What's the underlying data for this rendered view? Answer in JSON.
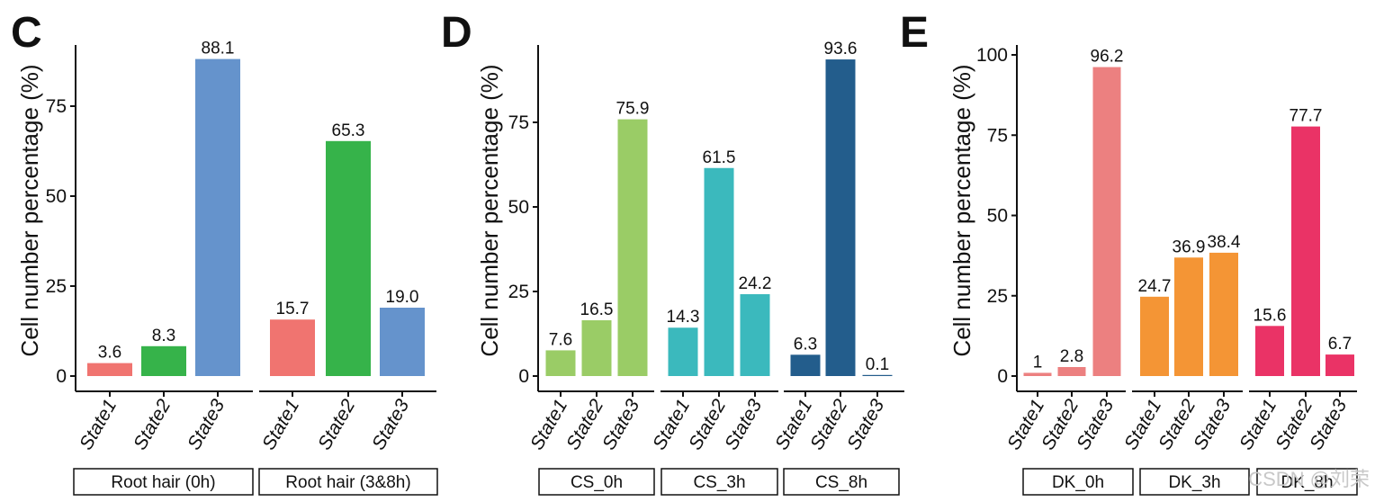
{
  "watermark": "CSDN @刘荣",
  "chart_data": [
    {
      "panel": "C",
      "type": "bar",
      "ylabel": "Cell number percentage (%)",
      "ylim": [
        0,
        92
      ],
      "yticks": [
        0,
        25,
        50,
        75
      ],
      "categories": [
        "State1",
        "State2",
        "State3"
      ],
      "facets": [
        {
          "label": "Root hair (0h)",
          "values": [
            3.6,
            8.3,
            88.1
          ],
          "labels": [
            "3.6",
            "8.3",
            "88.1"
          ],
          "colors": [
            "#f07470",
            "#36b34a",
            "#6593cc"
          ]
        },
        {
          "label": "Root hair (3&8h)",
          "values": [
            15.7,
            65.3,
            19.0
          ],
          "labels": [
            "15.7",
            "65.3",
            "19.0"
          ],
          "colors": [
            "#f07470",
            "#36b34a",
            "#6593cc"
          ]
        }
      ]
    },
    {
      "panel": "D",
      "type": "bar",
      "ylabel": "Cell number percentage (%)",
      "ylim": [
        0,
        98
      ],
      "yticks": [
        0,
        25,
        50,
        75
      ],
      "categories": [
        "State1",
        "State2",
        "State3"
      ],
      "facets": [
        {
          "label": "CS_0h",
          "values": [
            7.6,
            16.5,
            75.9
          ],
          "labels": [
            "7.6",
            "16.5",
            "75.9"
          ],
          "colors": [
            "#9acc66",
            "#9acc66",
            "#9acc66"
          ]
        },
        {
          "label": "CS_3h",
          "values": [
            14.3,
            61.5,
            24.2
          ],
          "labels": [
            "14.3",
            "61.5",
            "24.2"
          ],
          "colors": [
            "#3bb9bd",
            "#3bb9bd",
            "#3bb9bd"
          ]
        },
        {
          "label": "CS_8h",
          "values": [
            6.3,
            93.6,
            0.1
          ],
          "labels": [
            "6.3",
            "93.6",
            "0.1"
          ],
          "colors": [
            "#235d8c",
            "#235d8c",
            "#235d8c"
          ]
        }
      ]
    },
    {
      "panel": "E",
      "type": "bar",
      "ylabel": "Cell number percentage (%)",
      "ylim": [
        0,
        100
      ],
      "yticks": [
        0,
        25,
        50,
        75,
        100
      ],
      "categories": [
        "State1",
        "State2",
        "State3"
      ],
      "facets": [
        {
          "label": "DK_0h",
          "values": [
            1,
            2.8,
            96.2
          ],
          "labels": [
            "1",
            "2.8",
            "96.2"
          ],
          "colors": [
            "#ec8080",
            "#ec8080",
            "#ec8080"
          ]
        },
        {
          "label": "DK_3h",
          "values": [
            24.7,
            36.9,
            38.4
          ],
          "labels": [
            "24.7",
            "36.9",
            "38.4"
          ],
          "colors": [
            "#f49535",
            "#f49535",
            "#f49535"
          ]
        },
        {
          "label": "DK_8h",
          "values": [
            15.6,
            77.7,
            6.7
          ],
          "labels": [
            "15.6",
            "77.7",
            "6.7"
          ],
          "colors": [
            "#ea3366",
            "#ea3366",
            "#ea3366"
          ]
        }
      ]
    }
  ]
}
